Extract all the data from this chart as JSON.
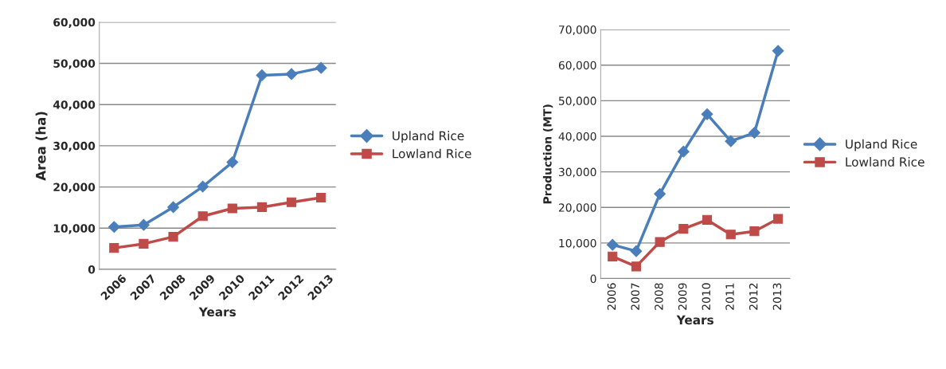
{
  "chart_data": [
    {
      "type": "line",
      "xlabel": "Years",
      "ylabel": "Area (ha)",
      "categories": [
        "2006",
        "2007",
        "2008",
        "2009",
        "2010",
        "2011",
        "2012",
        "2013"
      ],
      "series": [
        {
          "name": "Upland Rice",
          "color": "#4a7ebb",
          "marker": "diamond",
          "values": [
            10300,
            10800,
            15100,
            20100,
            26000,
            47100,
            47400,
            48900
          ]
        },
        {
          "name": "Lowland Rice",
          "color": "#be4b48",
          "marker": "square",
          "values": [
            5200,
            6200,
            7900,
            12900,
            14800,
            15100,
            16300,
            17400
          ]
        }
      ],
      "ylim": [
        0,
        60000
      ],
      "yticks": [
        {
          "value": 0,
          "label": "0"
        },
        {
          "value": 10000,
          "label": "10,000"
        },
        {
          "value": 20000,
          "label": "20,000"
        },
        {
          "value": 30000,
          "label": "30,000"
        },
        {
          "value": 40000,
          "label": "40,000"
        },
        {
          "value": 50000,
          "label": "50,000"
        },
        {
          "value": 60000,
          "label": "60,000"
        }
      ],
      "grid": "y",
      "legend": "right",
      "line_style": "solid"
    },
    {
      "type": "line",
      "xlabel": "Years",
      "ylabel": "Production (MT)",
      "categories": [
        "2006",
        "2007",
        "2008",
        "2009",
        "2010",
        "2011",
        "2012",
        "2013"
      ],
      "series": [
        {
          "name": "Upland Rice",
          "color": "#4a7ebb",
          "marker": "diamond",
          "values": [
            9500,
            7700,
            23800,
            35700,
            46200,
            38600,
            41000,
            64000
          ]
        },
        {
          "name": "Lowland Rice",
          "color": "#be4b48",
          "marker": "square",
          "values": [
            6200,
            3400,
            10300,
            14000,
            16500,
            12400,
            13300,
            16800
          ]
        }
      ],
      "ylim": [
        0,
        70000
      ],
      "yticks": [
        {
          "value": 0,
          "label": "0"
        },
        {
          "value": 10000,
          "label": "10,000"
        },
        {
          "value": 20000,
          "label": "20,000"
        },
        {
          "value": 30000,
          "label": "30,000"
        },
        {
          "value": 40000,
          "label": "40,000"
        },
        {
          "value": 50000,
          "label": "50,000"
        },
        {
          "value": 60000,
          "label": "60,000"
        },
        {
          "value": 70000,
          "label": "70,000"
        }
      ],
      "grid": "y",
      "legend": "right",
      "line_style": "solid"
    }
  ]
}
